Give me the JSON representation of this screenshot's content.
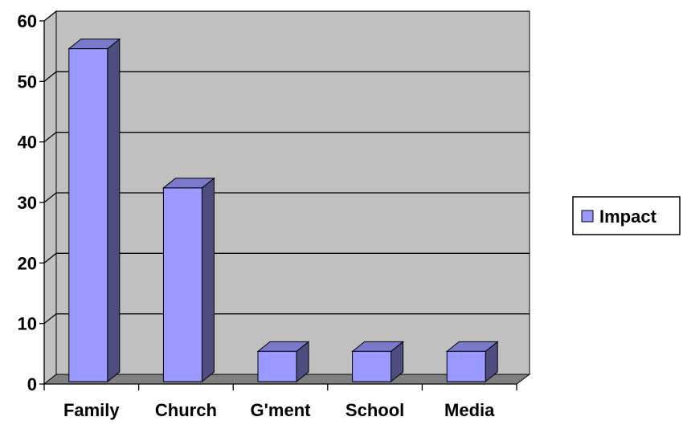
{
  "chart_data": {
    "type": "bar",
    "style": "3d-column",
    "categories": [
      "Family",
      "Church",
      "G'ment",
      "School",
      "Media"
    ],
    "series": [
      {
        "name": "Impact",
        "values": [
          55,
          32,
          5,
          5,
          5
        ],
        "color": "#9999ff"
      }
    ],
    "ylim": [
      0,
      60
    ],
    "yticks": [
      "0",
      "10",
      "20",
      "30",
      "40",
      "50",
      "60"
    ],
    "grid": true,
    "legend_position": "right",
    "colors": {
      "wall": "#c0c0c0",
      "floor": "#808080",
      "bar_front": "#9999ff",
      "bar_side": "#4d4d80",
      "bar_top": "#7a7acc"
    }
  }
}
